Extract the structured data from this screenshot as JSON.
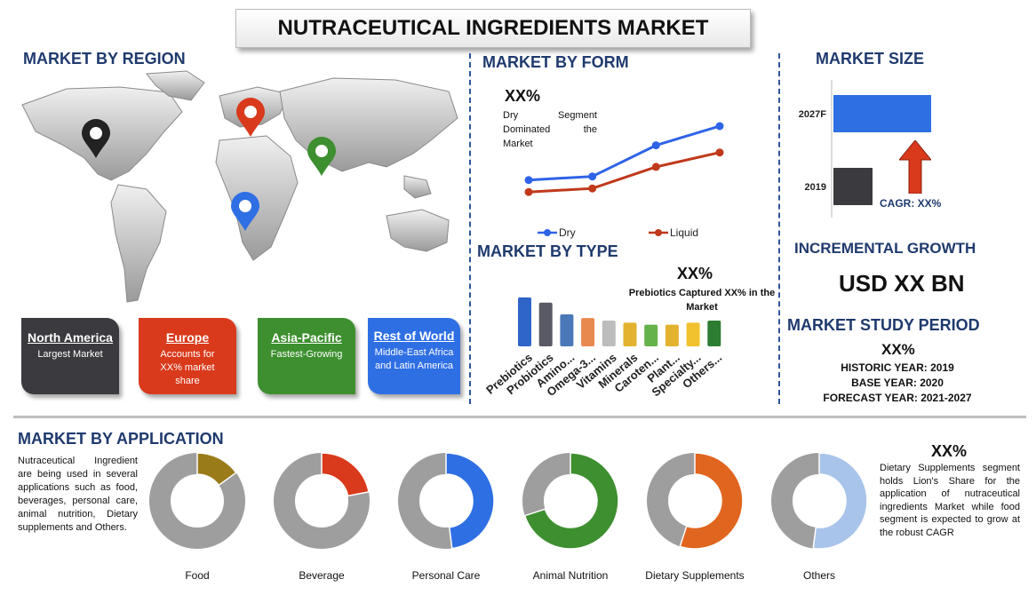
{
  "title": "NUTRACEUTICAL INGREDIENTS MARKET",
  "region": {
    "heading": "MARKET BY REGION",
    "cards": [
      {
        "name": "North America",
        "desc": "Largest Market",
        "color": "#3a3a3f"
      },
      {
        "name": "Europe",
        "desc": "Accounts for XX% market share",
        "color": "#d93a1c"
      },
      {
        "name": "Asia-Pacific",
        "desc": "Fastest-Growing",
        "color": "#3d8f2f"
      },
      {
        "name": "Rest of World",
        "desc": "Middle-East Africa and Latin America",
        "color": "#2f6fe4"
      }
    ],
    "pins": [
      {
        "name": "north-america",
        "color": "#222222"
      },
      {
        "name": "europe",
        "color": "#d93a1c"
      },
      {
        "name": "asia-pacific",
        "color": "#3d8f2f"
      },
      {
        "name": "rest-of-world",
        "color": "#2f6fe4"
      }
    ]
  },
  "form": {
    "heading": "MARKET BY FORM",
    "highlight": "XX%",
    "note": "Dry Segment Dominated the Market"
  },
  "type": {
    "heading": "MARKET BY TYPE",
    "highlight": "XX%",
    "note": "Prebiotics Captured XX% in the Market"
  },
  "size": {
    "heading": "MARKET SIZE",
    "cagr": "CAGR: XX%"
  },
  "growth": {
    "heading": "INCREMENTAL GROWTH",
    "value": "USD XX BN"
  },
  "study": {
    "heading": "MARKET STUDY PERIOD",
    "highlight": "XX%",
    "lines": [
      "HISTORIC YEAR: 2019",
      "BASE YEAR: 2020",
      "FORECAST YEAR: 2021-2027"
    ]
  },
  "application": {
    "heading": "MARKET BY APPLICATION",
    "intro": "Nutraceutical Ingredient are being used in several applications such as food, beverages, personal care, animal nutrition, Dietary supplements and Others.",
    "highlight": "XX%",
    "note": "Dietary Supplements segment holds Lion's Share for the application of nutraceutical ingredients Market while food segment is expected to grow at the robust CAGR"
  },
  "chart_data": [
    {
      "type": "line",
      "x": [
        1,
        2,
        3,
        4
      ],
      "series": [
        {
          "name": "Dry",
          "values": [
            3.5,
            3.8,
            6.4,
            8.0
          ],
          "color": "#2e63e8"
        },
        {
          "name": "Liquid",
          "values": [
            2.5,
            2.8,
            4.6,
            5.8
          ],
          "color": "#c0391b"
        }
      ],
      "ylim": [
        0,
        10
      ],
      "legend": "bottom"
    },
    {
      "type": "bar",
      "categories": [
        "Prebiotics",
        "Probiotics",
        "Amino...",
        "Omega-3...",
        "Vitamins",
        "Minerals",
        "Caroten...",
        "Plant...",
        "Specialty...",
        "Others..."
      ],
      "values": [
        9.5,
        8.5,
        6.2,
        5.5,
        5.0,
        4.6,
        4.2,
        4.2,
        4.6,
        5.0
      ],
      "colors": [
        "#2f64c8",
        "#5a5a66",
        "#4a78b8",
        "#e8894f",
        "#bdbdbd",
        "#e3b22f",
        "#66b24a",
        "#e3b22f",
        "#f2c12e",
        "#2e7d32"
      ],
      "ylim": [
        0,
        10
      ]
    },
    {
      "type": "bar",
      "orientation": "horizontal",
      "categories": [
        "2027F",
        "2019"
      ],
      "values": [
        100,
        40
      ],
      "colors": [
        "#2f6fe4",
        "#3a3a3f"
      ],
      "xlim": [
        0,
        100
      ]
    },
    {
      "type": "pie",
      "style": "donut",
      "charts": [
        {
          "label": "Food",
          "share": 0.15,
          "color": "#9a7b1a"
        },
        {
          "label": "Beverage",
          "share": 0.22,
          "color": "#d93a1c"
        },
        {
          "label": "Personal Care",
          "share": 0.48,
          "color": "#2f6fe4"
        },
        {
          "label": "Animal Nutrition",
          "share": 0.7,
          "color": "#3d8f2f"
        },
        {
          "label": "Dietary Supplements",
          "share": 0.55,
          "color": "#e0651e"
        },
        {
          "label": "Others",
          "share": 0.52,
          "color": "#a9c4ea"
        }
      ]
    }
  ]
}
